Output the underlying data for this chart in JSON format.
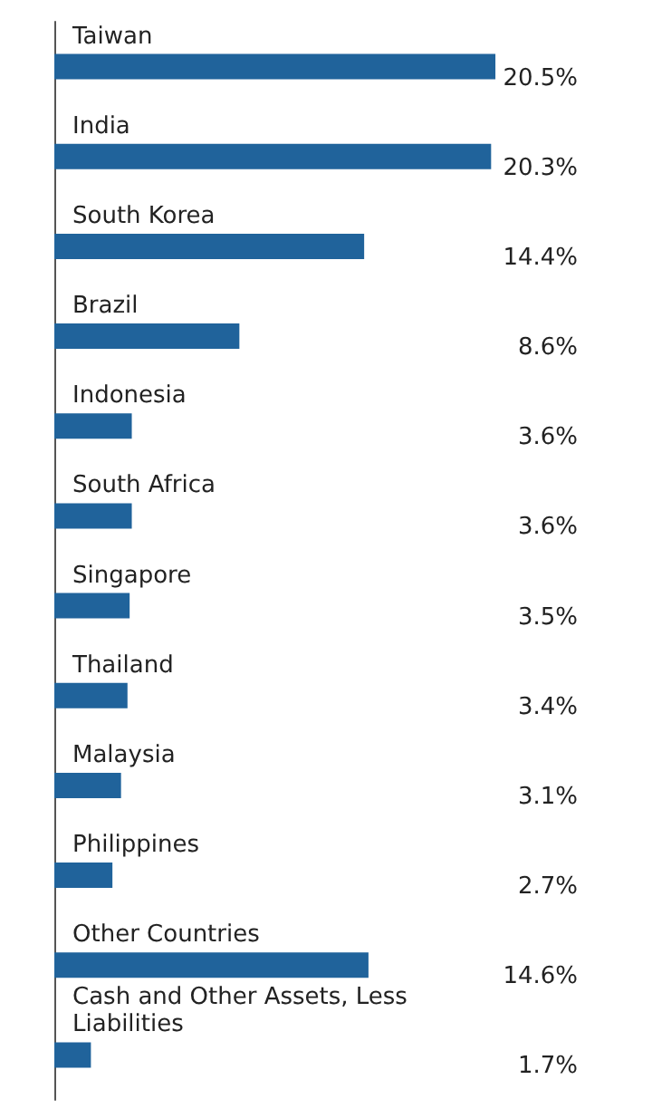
{
  "chart_data": {
    "type": "bar",
    "orientation": "horizontal",
    "categories": [
      "Taiwan",
      "India",
      "South Korea",
      "Brazil",
      "Indonesia",
      "South Africa",
      "Singapore",
      "Thailand",
      "Malaysia",
      "Philippines",
      "Other Countries",
      "Cash and Other Assets, Less Liabilities"
    ],
    "values": [
      20.5,
      20.3,
      14.4,
      8.6,
      3.6,
      3.6,
      3.5,
      3.4,
      3.1,
      2.7,
      14.6,
      1.7
    ],
    "value_labels": [
      "20.5%",
      "20.3%",
      "14.4%",
      "8.6%",
      "3.6%",
      "3.6%",
      "3.5%",
      "3.4%",
      "3.1%",
      "2.7%",
      "14.6%",
      "1.7%"
    ],
    "color": "#20639b",
    "tick_labels": "y"
  }
}
